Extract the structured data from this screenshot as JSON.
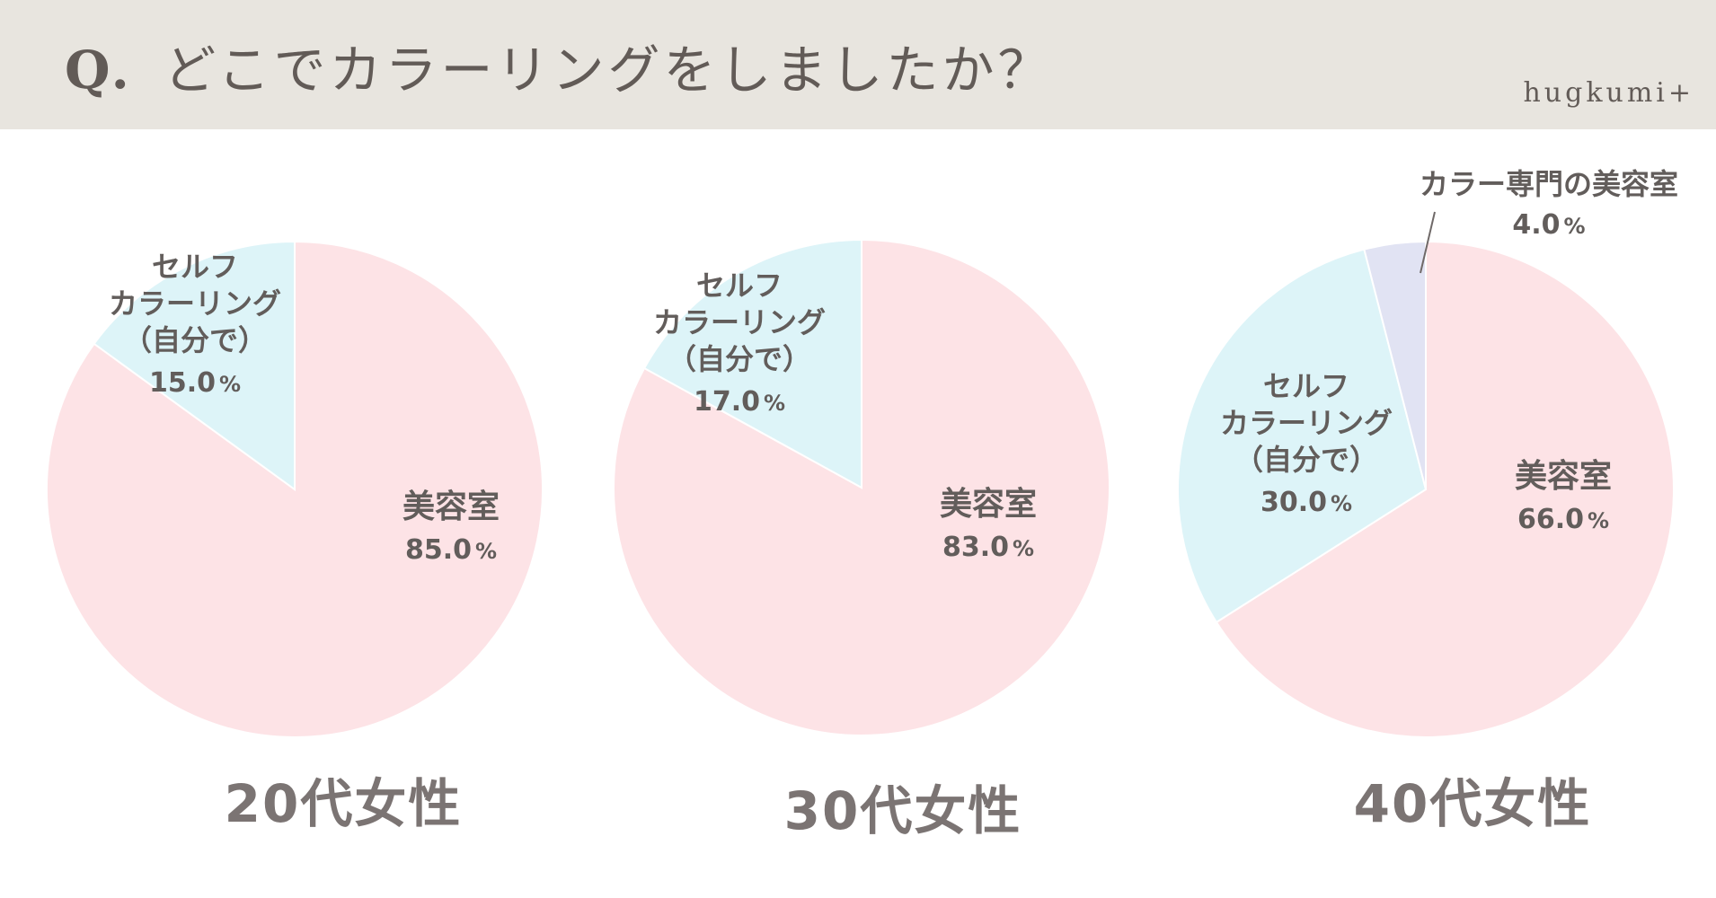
{
  "header": {
    "question_prefix": "Q.",
    "question_text": "どこでカラーリングをしましたか？",
    "brand": "hugkumi+"
  },
  "chart_data": [
    {
      "type": "pie",
      "title": "20代女性",
      "series": [
        {
          "name": "美容室",
          "value": 85.0,
          "display_value": "85.0",
          "unit": "%",
          "color": "#fde3e6"
        },
        {
          "name": "セルフ\nカラーリング\n（自分で）",
          "value": 15.0,
          "display_value": "15.0",
          "unit": "%",
          "color": "#ddf4f8"
        }
      ]
    },
    {
      "type": "pie",
      "title": "30代女性",
      "series": [
        {
          "name": "美容室",
          "value": 83.0,
          "display_value": "83.0",
          "unit": "%",
          "color": "#fde3e6"
        },
        {
          "name": "セルフ\nカラーリング\n（自分で）",
          "value": 17.0,
          "display_value": "17.0",
          "unit": "%",
          "color": "#ddf4f8"
        }
      ]
    },
    {
      "type": "pie",
      "title": "40代女性",
      "series": [
        {
          "name": "美容室",
          "value": 66.0,
          "display_value": "66.0",
          "unit": "%",
          "color": "#fde3e6"
        },
        {
          "name": "セルフ\nカラーリング\n（自分で）",
          "value": 30.0,
          "display_value": "30.0",
          "unit": "%",
          "color": "#ddf4f8"
        },
        {
          "name": "カラー専門の美容室",
          "value": 4.0,
          "display_value": "4.0",
          "unit": "%",
          "color": "#e1e3f3"
        }
      ]
    }
  ],
  "colors": {
    "header_background": "#e8e5df",
    "text": "#66605d"
  }
}
